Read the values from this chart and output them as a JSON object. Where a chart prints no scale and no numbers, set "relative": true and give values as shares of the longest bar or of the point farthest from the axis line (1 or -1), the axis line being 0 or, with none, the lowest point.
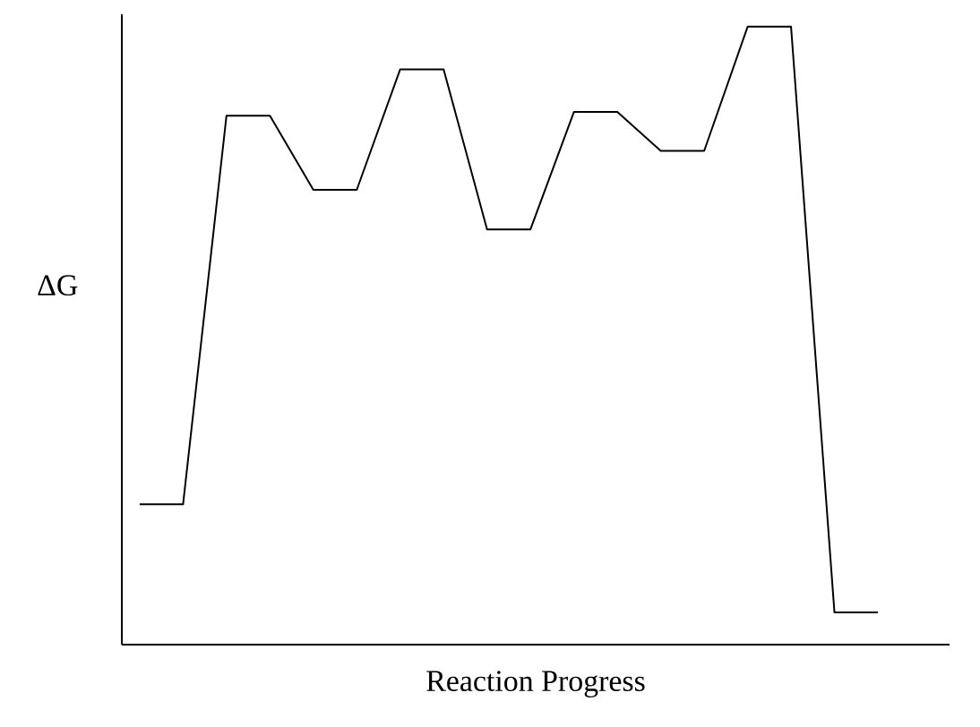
{
  "chart_data": {
    "type": "line",
    "xlabel": "Reaction Progress",
    "ylabel": "ΔG",
    "relative": true,
    "color": "#000000",
    "categories": [
      null,
      null,
      null,
      null,
      null,
      null,
      null,
      null,
      null,
      null,
      null,
      null,
      null,
      null,
      null,
      null,
      null,
      null
    ],
    "values": [
      0.227,
      0.227,
      0.856,
      0.856,
      0.736,
      0.736,
      0.931,
      0.931,
      0.672,
      0.672,
      0.862,
      0.862,
      0.799,
      0.799,
      1,
      1,
      0.052,
      0.052
    ]
  }
}
